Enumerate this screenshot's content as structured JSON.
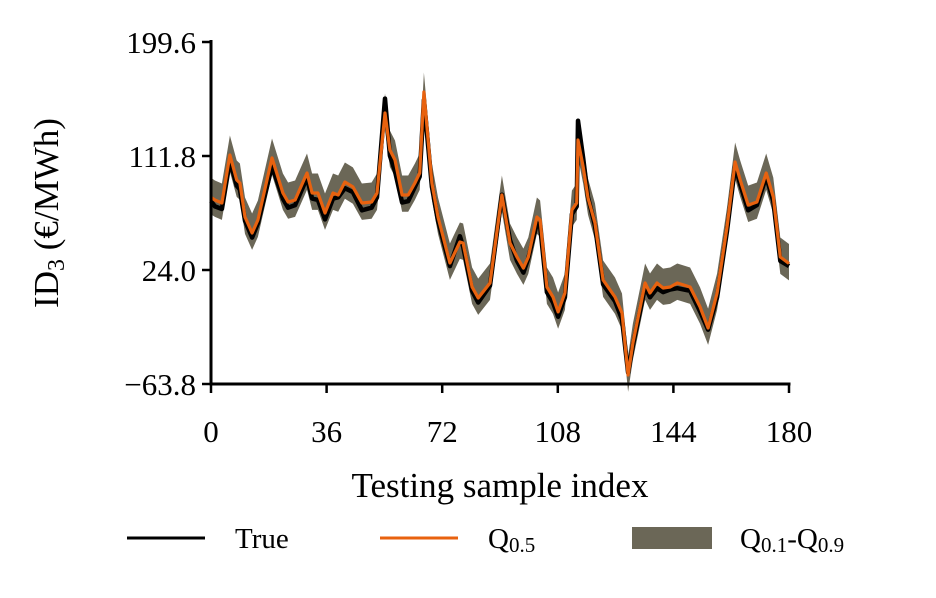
{
  "chart_data": {
    "type": "line",
    "title": "",
    "xlabel": "Testing sample index",
    "ylabel": {
      "main": "ID",
      "sub": "3",
      "rest": " (€/MWh)"
    },
    "xlim": [
      0,
      180
    ],
    "ylim": [
      -63.8,
      199.6
    ],
    "xticks": [
      "0",
      "36",
      "72",
      "108",
      "144",
      "180"
    ],
    "xtick_values": [
      0,
      36,
      72,
      108,
      144,
      180
    ],
    "yticks": [
      "199.6",
      "111.8",
      "24.0",
      "−63.8"
    ],
    "ytick_values": [
      199.6,
      111.8,
      24.0,
      -63.8
    ],
    "grid": false,
    "legend_position": "bottom",
    "x": [
      0,
      1.2,
      3.4,
      5.9,
      8,
      9,
      10.6,
      12.8,
      14.6,
      19,
      22.4,
      24,
      26.2,
      29.9,
      31.5,
      33.3,
      35.5,
      38,
      39.6,
      41.7,
      44.2,
      47,
      50,
      51.7,
      54.2,
      55.7,
      57.3,
      59.5,
      61.4,
      63.5,
      65,
      66.3,
      68.8,
      70.7,
      74.4,
      77.5,
      78.5,
      81.3,
      83.2,
      86.9,
      90.6,
      93.1,
      95.3,
      97.3,
      98.8,
      101.5,
      102.5,
      104.6,
      106.5,
      108.1,
      110.2,
      112.4,
      113.9,
      114.3,
      115.9,
      117.4,
      119.6,
      122.1,
      125.8,
      128,
      129.9,
      131.4,
      135.2,
      136.7,
      138.9,
      140.8,
      143,
      145.2,
      149.2,
      152.3,
      154.8,
      157.6,
      160.7,
      163.2,
      164.8,
      167.3,
      170,
      172.9,
      175.1,
      177.3,
      180
    ],
    "series": [
      {
        "name": "True",
        "color": "#000000",
        "values": [
          77,
          73,
          71,
          108,
          89,
          86,
          62,
          49,
          60,
          104,
          79,
          72,
          74,
          95,
          79,
          78,
          63,
          79,
          80,
          87,
          84,
          70,
          72,
          80,
          156,
          112,
          100,
          76,
          77,
          88,
          96,
          155,
          88,
          62,
          27,
          50,
          42,
          8,
          -1,
          12,
          82,
          47,
          31,
          22,
          33,
          60,
          58,
          7,
          -1,
          -12,
          3,
          67,
          73,
          139,
          110,
          80,
          58,
          13,
          0,
          -14,
          -55,
          -34,
          11,
          3,
          10,
          7,
          9,
          10,
          8,
          -8,
          -22,
          3,
          54,
          104,
          90,
          70,
          74,
          96,
          77,
          31,
          27
        ]
      },
      {
        "name": "Q0.5",
        "color": "#e8620f",
        "values": [
          80,
          77.9,
          75.6,
          112.6,
          93.3,
          91,
          64.8,
          52.5,
          62.5,
          110.3,
          83.3,
          76.4,
          77.9,
          98.7,
          83.3,
          83.3,
          67.9,
          83.3,
          81.8,
          91.8,
          88,
          75.6,
          76.4,
          83.3,
          144.9,
          116.4,
          108.7,
          81.8,
          81.8,
          91,
          98.7,
          161.1,
          91,
          64.8,
          29.4,
          45.6,
          44.8,
          10.9,
          2.4,
          14,
          81.8,
          44.8,
          34,
          25.5,
          34,
          64.8,
          62.5,
          10.9,
          3.2,
          -8.3,
          6.3,
          70.2,
          75.6,
          124.1,
          103.3,
          79.5,
          60.2,
          16.3,
          3.2,
          -9.1,
          -56.9,
          -32.2,
          14,
          6.3,
          14,
          10.1,
          10.9,
          14,
          10.9,
          -4.5,
          -20.7,
          6.3,
          57.1,
          107.2,
          93.3,
          74,
          76.4,
          98.7,
          80.2,
          34,
          29
        ]
      }
    ],
    "interval": {
      "name": "Q0.1-Q0.9",
      "color": "#6b6757",
      "lower_offset_from_median": -13,
      "upper_offset_from_median": 15
    },
    "legend": [
      {
        "kind": "line",
        "color": "#000000",
        "label": {
          "main": "True",
          "sub": ""
        }
      },
      {
        "kind": "line",
        "color": "#e8620f",
        "label": {
          "main": "Q",
          "sub": "0.5"
        }
      },
      {
        "kind": "patch",
        "color": "#6b6757",
        "label": {
          "main": "Q",
          "sub": "0.1",
          "main2": "-Q",
          "sub2": "0.9"
        }
      }
    ]
  }
}
